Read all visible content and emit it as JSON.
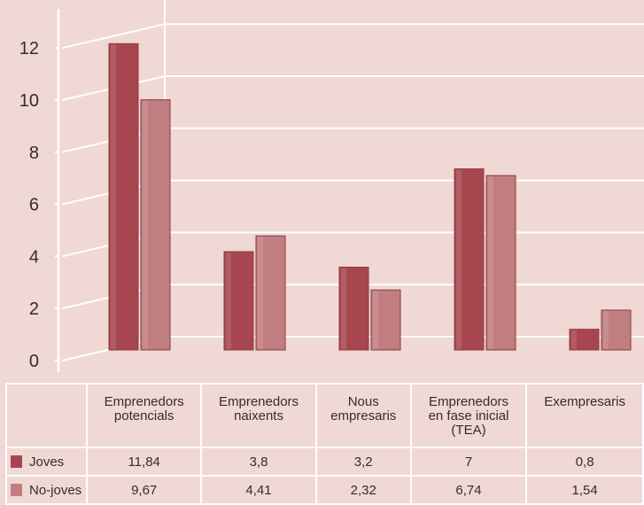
{
  "chart_data": {
    "type": "bar",
    "categories": [
      [
        "Emprenedors",
        "potencials"
      ],
      [
        "Emprenedors",
        "naixents"
      ],
      [
        "Nous",
        "empresaris"
      ],
      [
        "Emprenedors",
        "en fase inicial",
        "(TEA)"
      ],
      [
        "Exempresaris"
      ]
    ],
    "series": [
      {
        "name": "Joves",
        "values": [
          11.84,
          3.8,
          3.2,
          7,
          0.8
        ],
        "labels": [
          "11,84",
          "3,8",
          "3,2",
          "7",
          "0,8"
        ],
        "color": "#a8464f"
      },
      {
        "name": "No-joves",
        "values": [
          9.67,
          4.41,
          2.32,
          6.74,
          1.54
        ],
        "labels": [
          "9,67",
          "4,41",
          "2,32",
          "6,74",
          "1,54"
        ],
        "color": "#c07e80"
      }
    ],
    "y_ticks": [
      "0",
      "2",
      "4",
      "6",
      "8",
      "10",
      "12"
    ],
    "ylim": [
      0,
      13
    ],
    "grid": true,
    "legend": "table-rows"
  }
}
